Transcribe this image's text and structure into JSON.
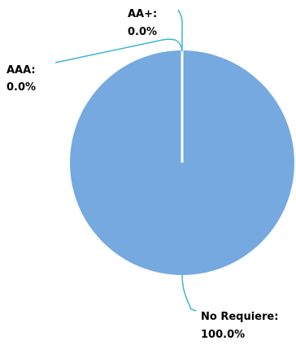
{
  "chart_data": {
    "type": "pie",
    "slices": [
      {
        "label": "AA+",
        "value": 0.0,
        "label_text": "AA+:",
        "value_text": "0.0%",
        "color": "#6fa8dc"
      },
      {
        "label": "AAA",
        "value": 0.0,
        "label_text": "AAA:",
        "value_text": "0.0%",
        "color": "#6fa8dc"
      },
      {
        "label": "No Requiere",
        "value": 100.0,
        "label_text": "No Requiere:",
        "value_text": "100.0%",
        "color": "#75a9df"
      }
    ],
    "leader_line_color": "#3cb4d4",
    "separator_color": "#ffffff"
  }
}
